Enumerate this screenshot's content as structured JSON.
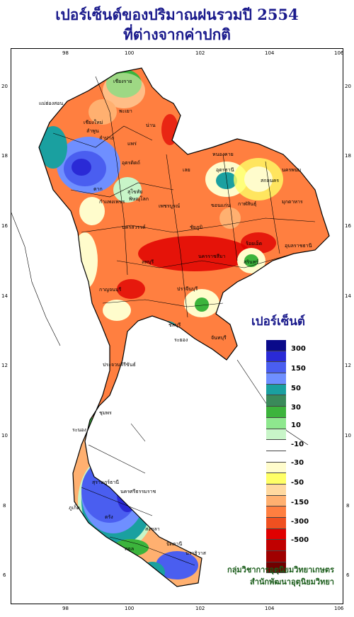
{
  "title": {
    "line1": "เปอร์เซ็นต์ของปริมาณฝนรวมปี 2554",
    "line2": "ที่ต่างจากค่าปกติ"
  },
  "axes": {
    "longitude_ticks": [
      "98",
      "100",
      "102",
      "104",
      "106"
    ],
    "latitude_ticks": [
      "20",
      "18",
      "16",
      "14",
      "12",
      "10",
      "8",
      "6"
    ]
  },
  "legend": {
    "title": "เปอร์เซ็นต์",
    "labels": [
      "300",
      "150",
      "50",
      "30",
      "10",
      "-10",
      "-30",
      "-50",
      "-150",
      "-300",
      "-500"
    ],
    "colors": [
      "#0a0a8a",
      "#2a2ad6",
      "#4a5ef0",
      "#6f8fff",
      "#1aa0a0",
      "#3a8a5a",
      "#3cb43c",
      "#8ee88e",
      "#c8f5c8",
      "#ffffff",
      "#ffffff",
      "#fffccc",
      "#ffff66",
      "#ffd9a0",
      "#ffb070",
      "#ff7f40",
      "#f05020",
      "#e00000",
      "#c00000",
      "#a00000",
      "#700000"
    ]
  },
  "credit": {
    "line1": "กลุ่มวิชาการอุตุนิยมวิทยาเกษตร",
    "line2": "สำนักพัฒนาอุตุนิยมวิทยา"
  },
  "places": [
    "เชียงราย",
    "พะเยา",
    "แม่ฮ่องสอน",
    "เชียงใหม่",
    "ลำพูน",
    "ลำปาง",
    "น่าน",
    "แพร่",
    "อุตรดิตถ์",
    "ตาก",
    "สุโขทัย",
    "กำแพงเพชร",
    "พิษณุโลก",
    "เพชรบูรณ์",
    "หนองคาย",
    "อุดรธานี",
    "สกลนคร",
    "นครพนม",
    "มุกดาหาร",
    "เลย",
    "ขอนแก่น",
    "กาฬสินธุ์",
    "นครสวรรค์",
    "ชัยภูมิ",
    "ร้อยเอ็ด",
    "นครราชสีมา",
    "อุบลราชธานี",
    "สุรินทร์",
    "กาญจนบุรี",
    "ลพบุรี",
    "ปราจีนบุรี",
    "ชลบุรี",
    "ระยอง",
    "จันทบุรี",
    "ประจวบคีรีขันธ์",
    "ชุมพร",
    "ระนอง",
    "สุราษฎร์ธานี",
    "นครศรีธรรมราช",
    "ภูเก็ต",
    "ตรัง",
    "สงขลา",
    "ปัตตานี",
    "นราธิวาส",
    "สตูล"
  ]
}
